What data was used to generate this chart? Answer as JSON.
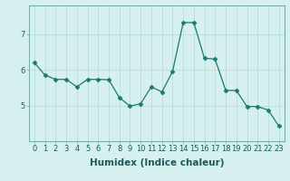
{
  "xlabel": "Humidex (Indice chaleur)",
  "x": [
    0,
    1,
    2,
    3,
    4,
    5,
    6,
    7,
    8,
    9,
    10,
    11,
    12,
    13,
    14,
    15,
    16,
    17,
    18,
    19,
    20,
    21,
    22,
    23
  ],
  "y": [
    6.2,
    5.85,
    5.73,
    5.73,
    5.52,
    5.73,
    5.73,
    5.72,
    5.22,
    4.98,
    5.05,
    5.52,
    5.38,
    5.95,
    7.32,
    7.32,
    6.32,
    6.3,
    5.42,
    5.42,
    4.97,
    4.97,
    4.87,
    4.42
  ],
  "line_color": "#1a7a6e",
  "marker": "D",
  "marker_size": 2.5,
  "bg_color": "#d6f0f0",
  "grid_color": "#b8dcdc",
  "ylim": [
    4.0,
    7.8
  ],
  "yticks": [
    5,
    6,
    7
  ],
  "xlim": [
    -0.5,
    23.5
  ],
  "tick_fontsize": 6,
  "label_fontsize": 7.5
}
